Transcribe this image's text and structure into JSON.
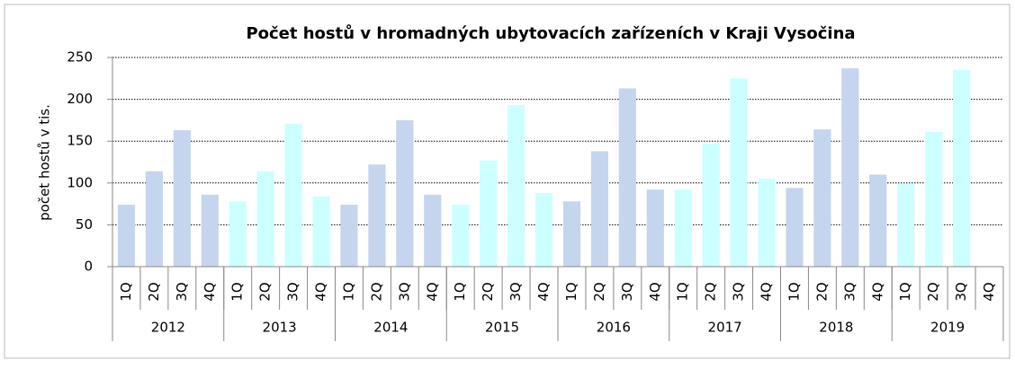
{
  "chart_data": {
    "type": "bar",
    "title": "Počet hostů v hromadných ubytovacích zařízeních v Kraji Vysočina",
    "y_label": "počet hostů v tis.",
    "categories": [
      "1Q",
      "2Q",
      "3Q",
      "4Q",
      "1Q",
      "2Q",
      "3Q",
      "4Q",
      "1Q",
      "2Q",
      "3Q",
      "4Q",
      "1Q",
      "2Q",
      "3Q",
      "4Q",
      "1Q",
      "2Q",
      "3Q",
      "4Q",
      "1Q",
      "2Q",
      "3Q",
      "4Q",
      "1Q",
      "2Q",
      "3Q",
      "4Q",
      "1Q",
      "2Q",
      "3Q",
      "4Q"
    ],
    "groups": [
      {
        "name": "2012",
        "color": "#c6d5ee"
      },
      {
        "name": "2013",
        "color": "#ccffff"
      },
      {
        "name": "2014",
        "color": "#c6d5ee"
      },
      {
        "name": "2015",
        "color": "#ccffff"
      },
      {
        "name": "2016",
        "color": "#c6d5ee"
      },
      {
        "name": "2017",
        "color": "#ccffff"
      },
      {
        "name": "2018",
        "color": "#c6d5ee"
      },
      {
        "name": "2019",
        "color": "#ccffff"
      }
    ],
    "values": [
      74,
      114,
      163,
      86,
      78,
      114,
      171,
      84,
      74,
      122,
      175,
      86,
      74,
      127,
      193,
      88,
      78,
      138,
      213,
      92,
      92,
      147,
      225,
      105,
      94,
      164,
      237,
      110,
      99,
      161,
      235,
      null
    ],
    "ylim": [
      0,
      250
    ],
    "yticks": [
      0,
      50,
      100,
      150,
      200,
      250
    ],
    "grid": true
  }
}
